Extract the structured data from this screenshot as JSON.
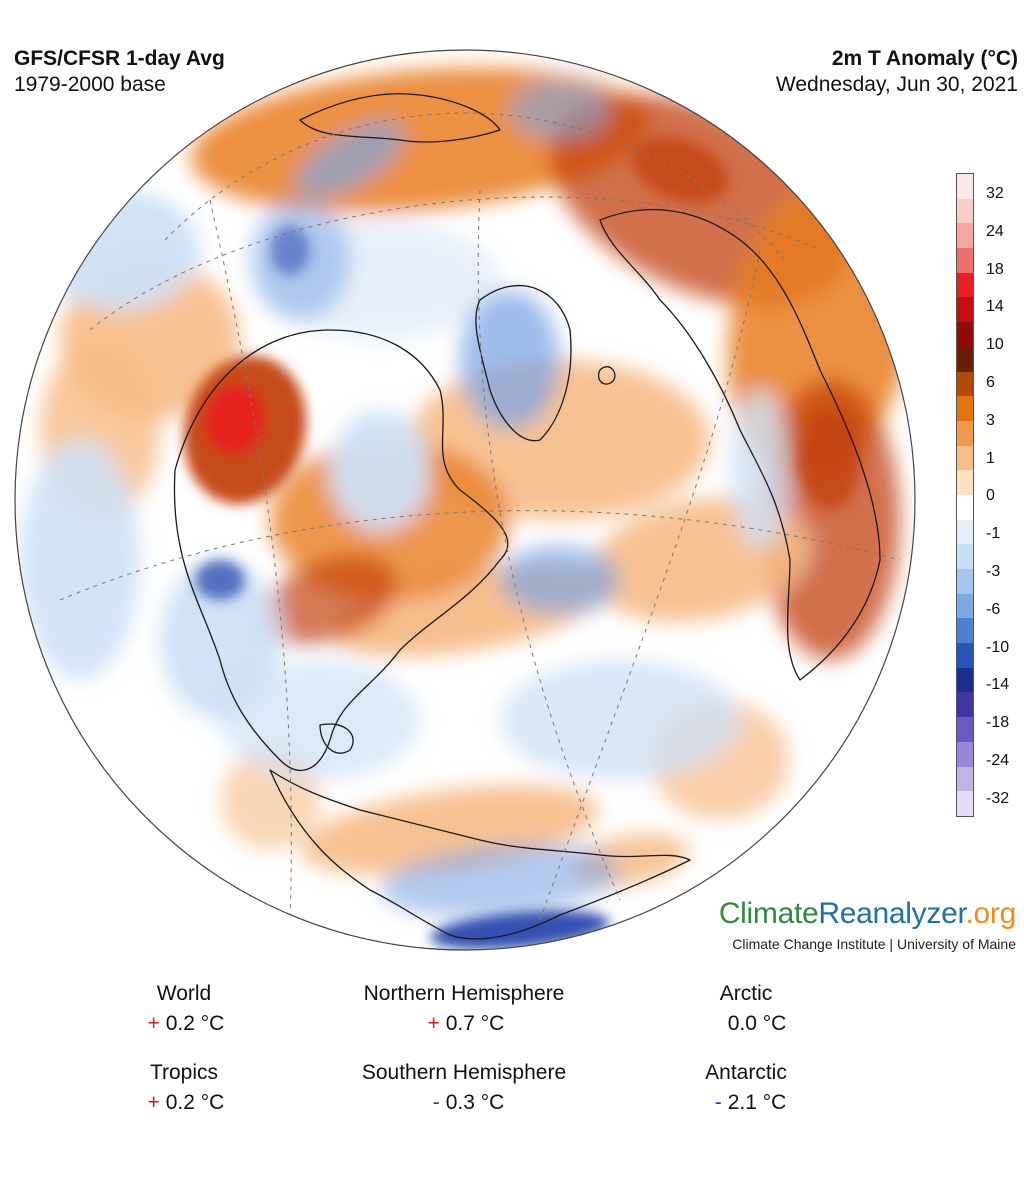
{
  "header": {
    "left_title": "GFS/CFSR 1-day Avg",
    "left_subtitle": "1979-2000 base",
    "right_title": "2m T Anomaly (°C)",
    "right_subtitle": "Wednesday, Jun 30, 2021"
  },
  "legend": {
    "labels": [
      "32",
      "24",
      "18",
      "14",
      "10",
      "6",
      "3",
      "1",
      "0",
      "-1",
      "-3",
      "-6",
      "-10",
      "-14",
      "-18",
      "-24",
      "-32"
    ],
    "colors": [
      "#fbe7e3",
      "#f8cfc6",
      "#f4a6a0",
      "#ef6f6f",
      "#ea1f1f",
      "#c30f0f",
      "#8f0a0a",
      "#6a1e06",
      "#b24a08",
      "#e2730f",
      "#f29a4a",
      "#f7be8a",
      "#fbe0c4",
      "#ffffff",
      "#e3eefb",
      "#c7dcf5",
      "#a4c5ee",
      "#7ea7e3",
      "#4f7fd0",
      "#2a55b8",
      "#1a2f8f",
      "#3b37a8",
      "#6a58c4",
      "#9b85d8",
      "#c2b2e6",
      "#e6dcf3"
    ]
  },
  "brand": {
    "logo_part1": "Climate",
    "logo_part2": "Reanalyzer",
    "logo_part3": ".org",
    "tagline": "Climate Change Institute | University of Maine",
    "colors": {
      "climate": "#2e8b3c",
      "reanalyzer": "#1f6fa8",
      "org": "#f08a1c"
    }
  },
  "stats": [
    {
      "name": "World",
      "sign": "+",
      "value": "0.2 °C"
    },
    {
      "name": "Northern Hemisphere",
      "sign": "+",
      "value": "0.7 °C"
    },
    {
      "name": "Arctic",
      "sign": "",
      "value": "0.0 °C"
    },
    {
      "name": "Tropics",
      "sign": "+",
      "value": "0.2 °C"
    },
    {
      "name": "Southern Hemisphere",
      "sign": "-",
      "value": "0.3 °C"
    },
    {
      "name": "Antarctic",
      "sign": "-",
      "value": "2.1 °C"
    }
  ],
  "map_colors": {
    "warm_extreme": "#ea1f1f",
    "warm_strong": "#c3410a",
    "warm_medium": "#e97d22",
    "warm_light": "#f6bb86",
    "neutral": "#ffffff",
    "cool_light": "#cfe1f6",
    "cool_medium": "#7ea7e3",
    "cool_strong": "#1f3ea8"
  }
}
